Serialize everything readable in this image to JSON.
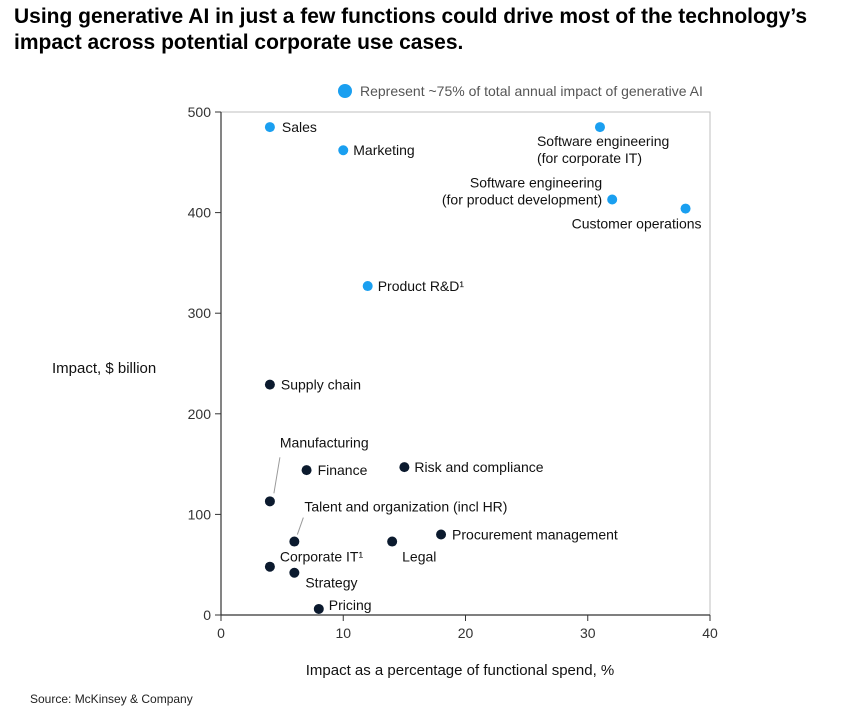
{
  "title": "Using generative AI in just a few functions could drive most of the technology’s impact across potential corporate use cases.",
  "source": "Source: McKinsey & Company",
  "colors": {
    "highlight": "#1a9ff0",
    "other": "#0b1a2e",
    "axis": "#333333",
    "text": "#111111"
  },
  "chart_data": {
    "type": "scatter",
    "xlabel": "Impact as a percentage of functional spend, %",
    "ylabel": "Impact, $ billion",
    "xlim": [
      0,
      40
    ],
    "ylim": [
      0,
      500
    ],
    "xticks": [
      0,
      10,
      20,
      30,
      40
    ],
    "yticks": [
      0,
      100,
      200,
      300,
      400,
      500
    ],
    "legend": {
      "label": "Represent ~75% of total annual impact of generative AI",
      "placement": "top"
    },
    "points": [
      {
        "name": "Sales",
        "label": [
          "Sales"
        ],
        "x": 4,
        "y": 485,
        "highlight": true
      },
      {
        "name": "Marketing",
        "label": [
          "Marketing"
        ],
        "x": 10,
        "y": 462,
        "highlight": true
      },
      {
        "name": "Software engineering (for corporate IT)",
        "label": [
          "Software engineering",
          "(for corporate IT)"
        ],
        "x": 31,
        "y": 485,
        "highlight": true
      },
      {
        "name": "Software engineering (for product development)",
        "label": [
          "Software engineering",
          "(for product development)"
        ],
        "x": 32,
        "y": 413,
        "highlight": true
      },
      {
        "name": "Customer operations",
        "label": [
          "Customer operations"
        ],
        "x": 38,
        "y": 404,
        "highlight": true
      },
      {
        "name": "Product R&D",
        "label": [
          "Product R&D¹"
        ],
        "x": 12,
        "y": 327,
        "highlight": true
      },
      {
        "name": "Supply chain",
        "label": [
          "Supply chain"
        ],
        "x": 4,
        "y": 229,
        "highlight": false
      },
      {
        "name": "Manufacturing",
        "label": [
          "Manufacturing"
        ],
        "x": 4,
        "y": 113,
        "highlight": false
      },
      {
        "name": "Finance",
        "label": [
          "Finance"
        ],
        "x": 7,
        "y": 144,
        "highlight": false
      },
      {
        "name": "Risk and compliance",
        "label": [
          "Risk and compliance"
        ],
        "x": 15,
        "y": 147,
        "highlight": false
      },
      {
        "name": "Talent and organization (incl HR)",
        "label": [
          "Talent and organization (incl HR)"
        ],
        "x": 6,
        "y": 73,
        "highlight": false
      },
      {
        "name": "Procurement management",
        "label": [
          "Procurement management"
        ],
        "x": 18,
        "y": 80,
        "highlight": false
      },
      {
        "name": "Legal",
        "label": [
          "Legal"
        ],
        "x": 14,
        "y": 73,
        "highlight": false
      },
      {
        "name": "Corporate IT",
        "label": [
          "Corporate IT¹"
        ],
        "x": 4,
        "y": 48,
        "highlight": false
      },
      {
        "name": "Strategy",
        "label": [
          "Strategy"
        ],
        "x": 6,
        "y": 42,
        "highlight": false
      },
      {
        "name": "Pricing",
        "label": [
          "Pricing"
        ],
        "x": 8,
        "y": 6,
        "highlight": false
      }
    ]
  }
}
